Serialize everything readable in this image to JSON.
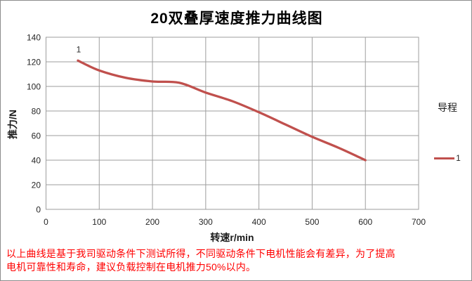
{
  "chart_data": {
    "type": "line",
    "title": "20双叠厚速度推力曲线图",
    "xlabel": "转速r/min",
    "ylabel": "推力/N",
    "xlim": [
      0,
      700
    ],
    "ylim": [
      0,
      140
    ],
    "x_ticks": [
      0,
      100,
      200,
      300,
      400,
      500,
      600,
      700
    ],
    "y_ticks": [
      0,
      20,
      40,
      60,
      80,
      100,
      120,
      140
    ],
    "grid": true,
    "legend_position": "right",
    "legend_title": "导程",
    "series": [
      {
        "name": "1",
        "color": "#C0504D",
        "point_label": "1",
        "points": [
          [
            60,
            121
          ],
          [
            100,
            113
          ],
          [
            150,
            107
          ],
          [
            200,
            104
          ],
          [
            250,
            103
          ],
          [
            300,
            95
          ],
          [
            350,
            88
          ],
          [
            400,
            79
          ],
          [
            450,
            69
          ],
          [
            500,
            59
          ],
          [
            550,
            50
          ],
          [
            600,
            40
          ]
        ]
      }
    ]
  },
  "disclaimer": {
    "line1": "以上曲线是基于我司驱动条件下测试所得，不同驱动条件下电机性能会有差异，为了提高",
    "line2": "电机可靠性和寿命，建议负载控制在电机推力50%以内。"
  },
  "colors": {
    "series": "#C0504D",
    "grid": "#9E9E9E",
    "border": "#8C8C8C",
    "axis_text": "#262626",
    "disclaimer": "#FF0000"
  }
}
